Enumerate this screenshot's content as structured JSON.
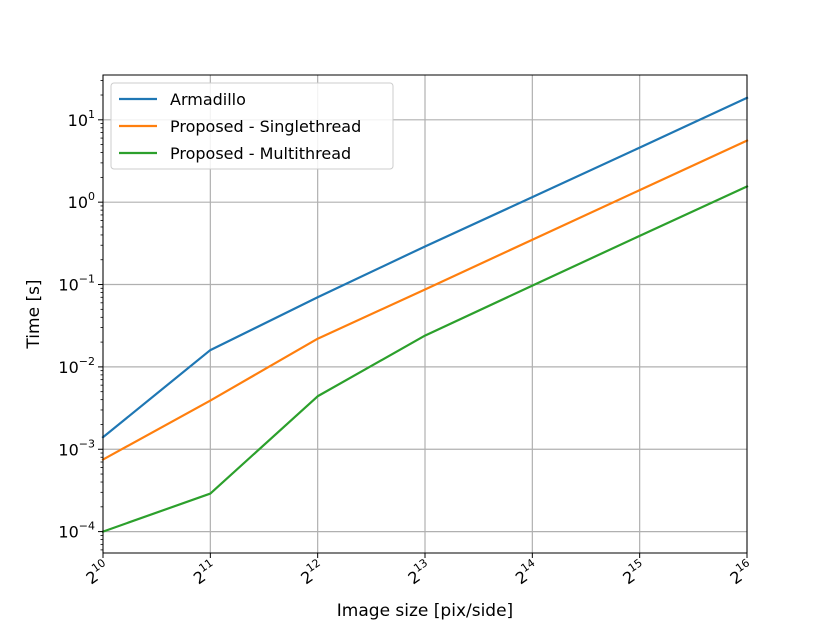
{
  "chart_data": {
    "type": "line",
    "xlabel": "Image size [pix/side]",
    "ylabel": "Time [s]",
    "x_scale": "log2",
    "y_scale": "log10",
    "x": [
      1024,
      2048,
      4096,
      8192,
      16384,
      32768,
      65536
    ],
    "x_tick_labels": [
      {
        "base": "2",
        "exp": "10"
      },
      {
        "base": "2",
        "exp": "11"
      },
      {
        "base": "2",
        "exp": "12"
      },
      {
        "base": "2",
        "exp": "13"
      },
      {
        "base": "2",
        "exp": "14"
      },
      {
        "base": "2",
        "exp": "15"
      },
      {
        "base": "2",
        "exp": "16"
      }
    ],
    "y_ticks": [
      0.0001,
      0.001,
      0.01,
      0.1,
      1,
      10
    ],
    "y_tick_labels": [
      {
        "base": "10",
        "exp": "−4"
      },
      {
        "base": "10",
        "exp": "−3"
      },
      {
        "base": "10",
        "exp": "−2"
      },
      {
        "base": "10",
        "exp": "−1"
      },
      {
        "base": "10",
        "exp": "0"
      },
      {
        "base": "10",
        "exp": "1"
      }
    ],
    "xlim": [
      1024,
      65536
    ],
    "ylim": [
      5.5e-05,
      35
    ],
    "grid": true,
    "legend_position": "upper-left",
    "series": [
      {
        "name": "Armadillo",
        "color": "#1f77b4",
        "values": [
          0.0014,
          0.016,
          0.07,
          0.29,
          1.15,
          4.6,
          18.5
        ]
      },
      {
        "name": "Proposed - Singlethread",
        "color": "#ff7f0e",
        "values": [
          0.00075,
          0.0039,
          0.022,
          0.087,
          0.35,
          1.4,
          5.6
        ]
      },
      {
        "name": "Proposed - Multithread",
        "color": "#2ca02c",
        "values": [
          0.0001,
          0.00029,
          0.0044,
          0.024,
          0.097,
          0.39,
          1.55
        ]
      }
    ],
    "colors": {
      "grid": "#b0b0b0",
      "axes": "#000000",
      "legend_border": "#cccccc"
    }
  }
}
